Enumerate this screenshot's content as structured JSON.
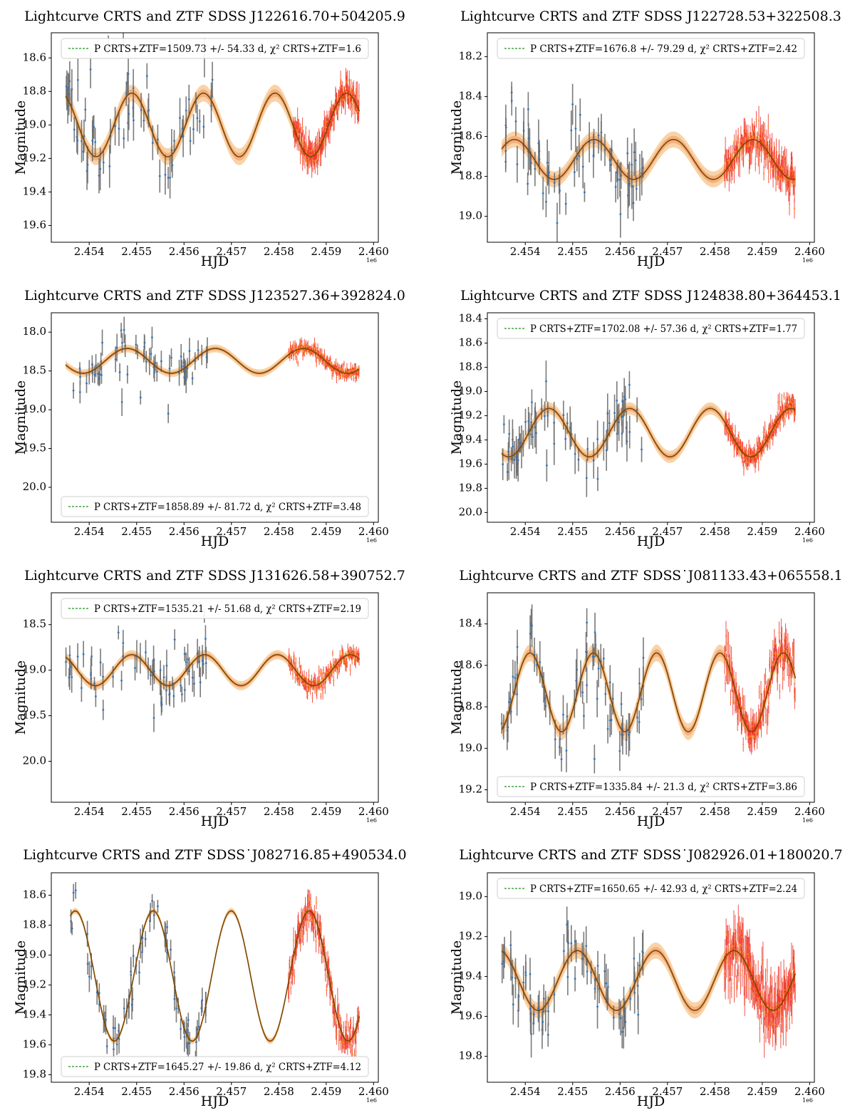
{
  "figure": {
    "x_unit_label": "HJD",
    "y_unit_label": "Magnitude"
  },
  "chart_data": [
    {
      "type": "line",
      "title": "Lightcurve CRTS and ZTF SDSS J122616.70+504205.9",
      "xlabel": "HJD",
      "ylabel": "Magnitude",
      "x_scale_note": "1e6",
      "xlim": [
        2.4532,
        2.4601
      ],
      "ylim": [
        19.7,
        18.45
      ],
      "x_ticks": [
        2.454,
        2.455,
        2.456,
        2.457,
        2.458,
        2.459,
        2.46
      ],
      "x_tick_labels": [
        "2.454",
        "2.455",
        "2.456",
        "2.457",
        "2.458",
        "2.459",
        "2.460"
      ],
      "y_ticks": [
        18.6,
        18.8,
        19.0,
        19.2,
        19.4,
        19.6
      ],
      "y_tick_labels": [
        "18.6",
        "18.8",
        "19.0",
        "19.2",
        "19.4",
        "19.6"
      ],
      "legend": {
        "position": "top",
        "label": "P CRTS+ZTF=1509.73 +/- 54.33 d, χ² CRTS+ZTF=1.6"
      },
      "model": {
        "name": "sinusoid fit",
        "mean": 19.0,
        "amplitude": 0.19,
        "period": 0.00150973,
        "phase_ref": 2.4549,
        "band": 0.05,
        "x_range": [
          2.4535,
          2.4597
        ]
      },
      "series": [
        {
          "name": "CRTS",
          "x_range": [
            2.4535,
            2.4566
          ],
          "n": 70,
          "scatter": 0.14,
          "err": 0.09
        },
        {
          "name": "ZTF",
          "x_range": [
            2.4583,
            2.4597
          ],
          "n": 160,
          "scatter": 0.05,
          "err": 0.05
        }
      ]
    },
    {
      "type": "line",
      "title": "Lightcurve CRTS and ZTF SDSS J122728.53+322508.3",
      "xlabel": "HJD",
      "ylabel": "Magnitude",
      "x_scale_note": "1e6",
      "xlim": [
        2.4532,
        2.4601
      ],
      "ylim": [
        19.13,
        18.08
      ],
      "x_ticks": [
        2.454,
        2.455,
        2.456,
        2.457,
        2.458,
        2.459,
        2.46
      ],
      "x_tick_labels": [
        "2.454",
        "2.455",
        "2.456",
        "2.457",
        "2.458",
        "2.459",
        "2.460"
      ],
      "y_ticks": [
        18.2,
        18.4,
        18.6,
        18.8,
        19.0
      ],
      "y_tick_labels": [
        "18.2",
        "18.4",
        "18.6",
        "18.8",
        "19.0"
      ],
      "legend": {
        "position": "top",
        "label": "P CRTS+ZTF=1676.8 +/- 79.29 d, χ² CRTS+ZTF=2.42"
      },
      "model": {
        "name": "sinusoid fit",
        "mean": 18.715,
        "amplitude": 0.1,
        "period": 0.0016768,
        "phase_ref": 2.45545,
        "band": 0.04,
        "x_range": [
          2.4535,
          2.4597
        ]
      },
      "series": [
        {
          "name": "CRTS",
          "x_range": [
            2.4535,
            2.4565
          ],
          "n": 70,
          "scatter": 0.09,
          "err": 0.08
        },
        {
          "name": "ZTF",
          "x_range": [
            2.4582,
            2.4597
          ],
          "n": 150,
          "scatter": 0.05,
          "err": 0.05
        }
      ]
    },
    {
      "type": "line",
      "title": "Lightcurve CRTS and ZTF SDSS J123527.36+392824.0",
      "xlabel": "HJD",
      "ylabel": "Magnitude",
      "x_scale_note": "1e6",
      "xlim": [
        2.4532,
        2.4601
      ],
      "ylim": [
        20.45,
        17.75
      ],
      "x_ticks": [
        2.454,
        2.455,
        2.456,
        2.457,
        2.458,
        2.459,
        2.46
      ],
      "x_tick_labels": [
        "2.454",
        "2.455",
        "2.456",
        "2.457",
        "2.458",
        "2.459",
        "2.460"
      ],
      "y_ticks": [
        18.0,
        18.5,
        19.0,
        19.5,
        20.0
      ],
      "y_tick_labels": [
        "18.0",
        "18.5",
        "19.0",
        "19.5",
        "20.0"
      ],
      "legend": {
        "position": "bottom",
        "label": "P CRTS+ZTF=1858.89 +/- 81.72 d, χ² CRTS+ZTF=3.48"
      },
      "model": {
        "name": "sinusoid fit",
        "mean": 18.37,
        "amplitude": 0.16,
        "period": 0.00185889,
        "phase_ref": 2.4548,
        "band": 0.05,
        "x_range": [
          2.4535,
          2.4597
        ]
      },
      "series": [
        {
          "name": "CRTS",
          "x_range": [
            2.4535,
            2.4565
          ],
          "n": 60,
          "scatter": 0.15,
          "err": 0.12
        },
        {
          "name": "ZTF",
          "x_range": [
            2.4582,
            2.4597
          ],
          "n": 150,
          "scatter": 0.05,
          "err": 0.05
        }
      ]
    },
    {
      "type": "line",
      "title": "Lightcurve CRTS and ZTF SDSS J124838.80+364453.1",
      "xlabel": "HJD",
      "ylabel": "Magnitude",
      "x_scale_note": "1e6",
      "xlim": [
        2.4532,
        2.4601
      ],
      "ylim": [
        20.08,
        18.35
      ],
      "x_ticks": [
        2.454,
        2.455,
        2.456,
        2.457,
        2.458,
        2.459,
        2.46
      ],
      "x_tick_labels": [
        "2.454",
        "2.455",
        "2.456",
        "2.457",
        "2.458",
        "2.459",
        "2.460"
      ],
      "y_ticks": [
        18.4,
        18.6,
        18.8,
        19.0,
        19.2,
        19.4,
        19.6,
        19.8,
        20.0
      ],
      "y_tick_labels": [
        "18.4",
        "18.6",
        "18.8",
        "19.0",
        "19.2",
        "19.4",
        "19.6",
        "19.8",
        "20.0"
      ],
      "legend": {
        "position": "top",
        "label": "P CRTS+ZTF=1702.08 +/- 57.36 d, χ² CRTS+ZTF=1.77"
      },
      "model": {
        "name": "sinusoid fit",
        "mean": 19.34,
        "amplitude": 0.2,
        "period": 0.00170208,
        "phase_ref": 2.4545,
        "band": 0.05,
        "x_range": [
          2.4535,
          2.4597
        ]
      },
      "series": [
        {
          "name": "CRTS",
          "x_range": [
            2.4535,
            2.4565
          ],
          "n": 70,
          "scatter": 0.13,
          "err": 0.12
        },
        {
          "name": "ZTF",
          "x_range": [
            2.4582,
            2.4597
          ],
          "n": 160,
          "scatter": 0.05,
          "err": 0.05
        }
      ]
    },
    {
      "type": "line",
      "title": "Lightcurve CRTS and ZTF SDSS J131626.58+390752.7",
      "xlabel": "HJD",
      "ylabel": "Magnitude",
      "x_scale_note": "1e6",
      "xlim": [
        2.4532,
        2.4601
      ],
      "ylim": [
        20.45,
        18.15
      ],
      "x_ticks": [
        2.454,
        2.455,
        2.456,
        2.457,
        2.458,
        2.459,
        2.46
      ],
      "x_tick_labels": [
        "2.454",
        "2.455",
        "2.456",
        "2.457",
        "2.458",
        "2.459",
        "2.460"
      ],
      "y_ticks": [
        18.5,
        19.0,
        19.5,
        20.0
      ],
      "y_tick_labels": [
        "18.5",
        "19.0",
        "19.5",
        "20.0"
      ],
      "legend": {
        "position": "top",
        "label": "P CRTS+ZTF=1535.21 +/- 51.68 d, χ² CRTS+ZTF=2.19"
      },
      "model": {
        "name": "sinusoid fit",
        "mean": 19.0,
        "amplitude": 0.17,
        "period": 0.00153521,
        "phase_ref": 2.4549,
        "band": 0.05,
        "x_range": [
          2.4535,
          2.4597
        ]
      },
      "series": [
        {
          "name": "CRTS",
          "x_range": [
            2.4535,
            2.4565
          ],
          "n": 65,
          "scatter": 0.16,
          "err": 0.12
        },
        {
          "name": "ZTF",
          "x_range": [
            2.4582,
            2.4597
          ],
          "n": 150,
          "scatter": 0.06,
          "err": 0.05
        }
      ]
    },
    {
      "type": "line",
      "title": "Lightcurve CRTS and ZTF SDSS˙J081133.43+065558.1",
      "xlabel": "HJD",
      "ylabel": "Magnitude",
      "x_scale_note": "1e6",
      "xlim": [
        2.4532,
        2.4601
      ],
      "ylim": [
        19.26,
        18.25
      ],
      "x_ticks": [
        2.454,
        2.455,
        2.456,
        2.457,
        2.458,
        2.459,
        2.46
      ],
      "x_tick_labels": [
        "2.454",
        "2.455",
        "2.456",
        "2.457",
        "2.458",
        "2.459",
        "2.460"
      ],
      "y_ticks": [
        18.4,
        18.6,
        18.8,
        19.0,
        19.2
      ],
      "y_tick_labels": [
        "18.4",
        "18.6",
        "18.8",
        "19.0",
        "19.2"
      ],
      "legend": {
        "position": "bottom",
        "label": "P CRTS+ZTF=1335.84 +/- 21.3 d, χ² CRTS+ZTF=3.86"
      },
      "model": {
        "name": "sinusoid fit",
        "mean": 18.73,
        "amplitude": 0.19,
        "period": 0.00133584,
        "phase_ref": 2.4541,
        "band": 0.04,
        "x_range": [
          2.4535,
          2.4597
        ]
      },
      "series": [
        {
          "name": "CRTS",
          "x_range": [
            2.4535,
            2.4565
          ],
          "n": 70,
          "scatter": 0.08,
          "err": 0.07
        },
        {
          "name": "ZTF",
          "x_range": [
            2.4582,
            2.4597
          ],
          "n": 150,
          "scatter": 0.06,
          "err": 0.05
        }
      ]
    },
    {
      "type": "line",
      "title": "Lightcurve CRTS and ZTF SDSS˙J082716.85+490534.0",
      "xlabel": "HJD",
      "ylabel": "Magnitude",
      "x_scale_note": "1e6",
      "xlim": [
        2.4532,
        2.4601
      ],
      "ylim": [
        19.85,
        18.45
      ],
      "x_ticks": [
        2.454,
        2.455,
        2.456,
        2.457,
        2.458,
        2.459,
        2.46
      ],
      "x_tick_labels": [
        "2.454",
        "2.455",
        "2.456",
        "2.457",
        "2.458",
        "2.459",
        "2.460"
      ],
      "y_ticks": [
        18.6,
        18.8,
        19.0,
        19.2,
        19.4,
        19.6,
        19.8
      ],
      "y_tick_labels": [
        "18.6",
        "18.8",
        "19.0",
        "19.2",
        "19.4",
        "19.6",
        "19.8"
      ],
      "legend": {
        "position": "bottom",
        "label": "P CRTS+ZTF=1645.27 +/- 19.86 d, χ² CRTS+ZTF=4.12"
      },
      "model": {
        "name": "sinusoid fit",
        "mean": 19.14,
        "amplitude": 0.435,
        "period": 0.00164527,
        "phase_ref": 2.45535,
        "band": 0.02,
        "x_range": [
          2.4536,
          2.4597
        ]
      },
      "series": [
        {
          "name": "CRTS",
          "x_range": [
            2.4536,
            2.4565
          ],
          "n": 70,
          "scatter": 0.08,
          "err": 0.07
        },
        {
          "name": "ZTF",
          "x_range": [
            2.4582,
            2.4597
          ],
          "n": 150,
          "scatter": 0.07,
          "err": 0.06
        }
      ]
    },
    {
      "type": "line",
      "title": "Lightcurve CRTS and ZTF SDSS˙J082926.01+180020.7",
      "xlabel": "HJD",
      "ylabel": "Magnitude",
      "x_scale_note": "1e6",
      "xlim": [
        2.4532,
        2.4601
      ],
      "ylim": [
        19.93,
        18.88
      ],
      "x_ticks": [
        2.454,
        2.455,
        2.456,
        2.457,
        2.458,
        2.459,
        2.46
      ],
      "x_tick_labels": [
        "2.454",
        "2.455",
        "2.456",
        "2.457",
        "2.458",
        "2.459",
        "2.460"
      ],
      "y_ticks": [
        19.0,
        19.2,
        19.4,
        19.6,
        19.8
      ],
      "y_tick_labels": [
        "19.0",
        "19.2",
        "19.4",
        "19.6",
        "19.8"
      ],
      "legend": {
        "position": "top",
        "label": "P CRTS+ZTF=1650.65 +/- 42.93 d, χ² CRTS+ZTF=2.24"
      },
      "model": {
        "name": "sinusoid fit",
        "mean": 19.42,
        "amplitude": 0.15,
        "period": 0.00165065,
        "phase_ref": 2.4551,
        "band": 0.04,
        "x_range": [
          2.4535,
          2.4597
        ]
      },
      "series": [
        {
          "name": "CRTS",
          "x_range": [
            2.4535,
            2.4565
          ],
          "n": 70,
          "scatter": 0.1,
          "err": 0.08
        },
        {
          "name": "ZTF",
          "x_range": [
            2.4582,
            2.4597
          ],
          "n": 180,
          "scatter": 0.08,
          "err": 0.07
        }
      ]
    }
  ]
}
